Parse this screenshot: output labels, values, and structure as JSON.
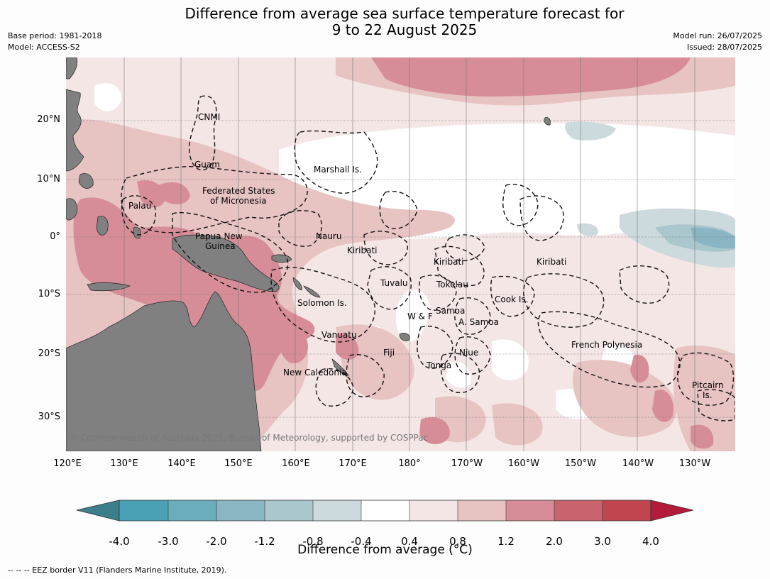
{
  "header": {
    "title_line1": "Difference from average sea surface temperature forecast for",
    "title_line2": "9 to 22 August 2025",
    "base_period": "Base period: 1981-2018",
    "model": "Model: ACCESS-S2",
    "model_run": "Model run: 26/07/2025",
    "issued": "Issued: 28/07/2025"
  },
  "map": {
    "copyright": "© Commonwealth of Australia 2025, Bureau of Meteorology, supported by COSPPac",
    "lat_labels": [
      "20°N",
      "10°N",
      "0°",
      "10°S",
      "20°S",
      "30°S"
    ],
    "lon_labels": [
      "120°E",
      "130°E",
      "140°E",
      "150°E",
      "160°E",
      "170°E",
      "180°",
      "170°W",
      "160°W",
      "150°W",
      "140°W",
      "130°W"
    ],
    "regions": {
      "cnmi": "CNMI",
      "guam": "Guam",
      "marshall": "Marshall Is.",
      "fsm1": "Federated States",
      "fsm2": "of Micronesia",
      "palau": "Palau",
      "nauru": "Nauru",
      "png1": "Papua New",
      "png2": "Guinea",
      "kiribati_west": "Kiribati",
      "kiribati_central": "Kiribati",
      "kiribati_east": "Kiribati",
      "tuvalu": "Tuvalu",
      "tokelau": "Tokelau",
      "cook": "Cook Is.",
      "solomon": "Solomon Is.",
      "samoa": "Samoa",
      "wf": "W & F",
      "asamoa": "A. Samoa",
      "vanuatu": "Vanuatu",
      "fiji": "Fiji",
      "niue": "Niue",
      "tonga": "Tonga",
      "frpoly": "French Polynesia",
      "newcal": "New Caledonia",
      "pitcairn1": "Pitcairn",
      "pitcairn2": "Is."
    }
  },
  "colorbar": {
    "ticks": [
      "-4.0",
      "-3.0",
      "-2.0",
      "-1.2",
      "-0.8",
      "-0.4",
      "0.4",
      "0.8",
      "1.2",
      "2.0",
      "3.0",
      "4.0"
    ],
    "colors": [
      "#3b7f8b",
      "#4aa0b4",
      "#6aadbd",
      "#8ab5c2",
      "#a9c7cc",
      "#ccd9dd",
      "#ffffff",
      "#f4e6e5",
      "#e7c3c2",
      "#d78d97",
      "#c9636e",
      "#c0454f",
      "#b31b3a"
    ],
    "title": "Difference from average (°C)"
  },
  "legend": {
    "eez": "--  --  -- EEZ border V11 (Flanders Marine Institute, 2019)."
  }
}
